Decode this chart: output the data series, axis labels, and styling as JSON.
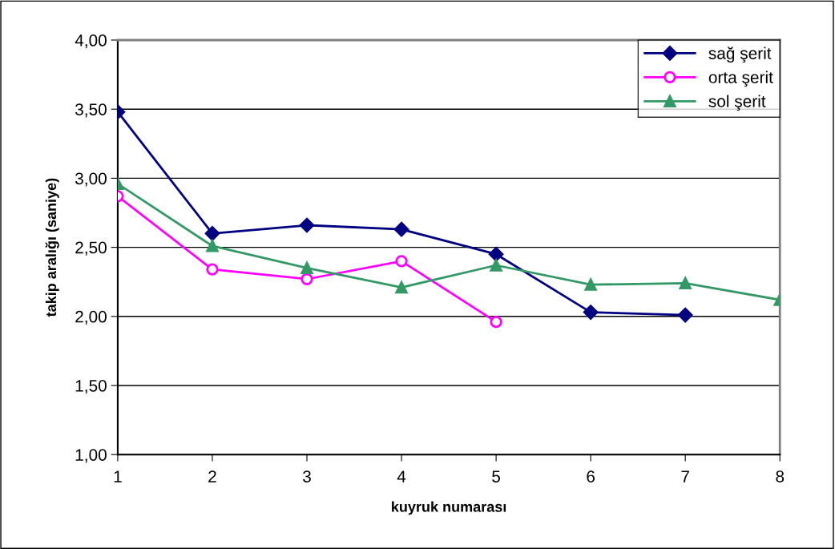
{
  "chart_data": {
    "type": "line",
    "xlabel": "kuyruk numarası",
    "ylabel": "takip aralığı (saniye)",
    "x": [
      1,
      2,
      3,
      4,
      5,
      6,
      7,
      8
    ],
    "series": [
      {
        "name": "sağ şerit",
        "color": "#000080",
        "marker": "diamond",
        "values": [
          3.48,
          2.6,
          2.66,
          2.63,
          2.45,
          2.03,
          2.01,
          null
        ]
      },
      {
        "name": "orta şerit",
        "color": "#ff00ff",
        "marker": "circle",
        "values": [
          2.87,
          2.34,
          2.27,
          2.4,
          1.96,
          null,
          null,
          null
        ]
      },
      {
        "name": "sol şerit",
        "color": "#339966",
        "marker": "triangle",
        "values": [
          2.96,
          2.51,
          2.35,
          2.21,
          2.37,
          2.23,
          2.24,
          2.12
        ]
      }
    ],
    "xlim": [
      1,
      8
    ],
    "xticks": [
      1,
      2,
      3,
      4,
      5,
      6,
      7,
      8
    ],
    "ylim": [
      1.0,
      4.0
    ],
    "yticks": [
      {
        "value": 1.0,
        "label": "1,00"
      },
      {
        "value": 1.5,
        "label": "1,50"
      },
      {
        "value": 2.0,
        "label": "2,00"
      },
      {
        "value": 2.5,
        "label": "2,50"
      },
      {
        "value": 3.0,
        "label": "3,00"
      },
      {
        "value": 3.5,
        "label": "3,50"
      },
      {
        "value": 4.0,
        "label": "4,00"
      }
    ],
    "grid": "y",
    "legend": "top right"
  }
}
